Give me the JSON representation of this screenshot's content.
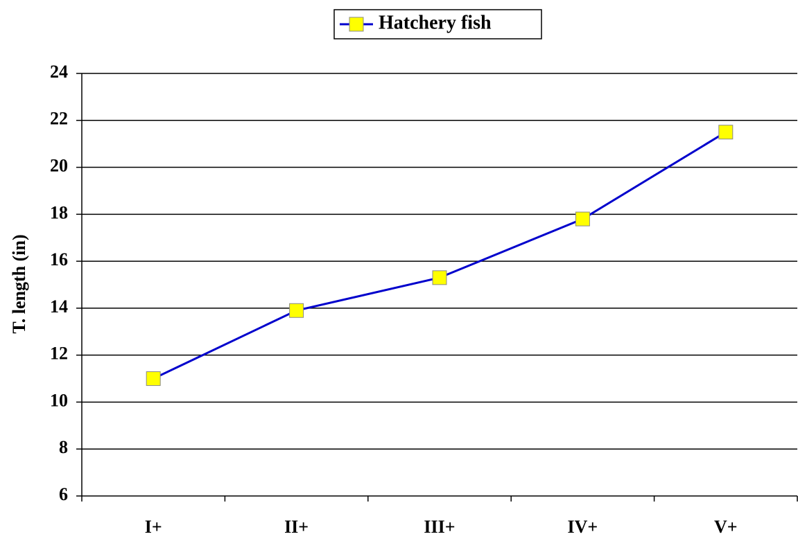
{
  "chart_data": {
    "type": "line",
    "y_label": "T. length (in)",
    "categories": [
      "I+",
      "II+",
      "III+",
      "IV+",
      "V+"
    ],
    "series": [
      {
        "name": "Hatchery fish",
        "color": "#0000cc",
        "marker_color": "#ffff00",
        "values": [
          11,
          13.9,
          15.3,
          17.8,
          21.5
        ]
      }
    ],
    "ylim": [
      6,
      24
    ],
    "yticks": [
      6,
      8,
      10,
      12,
      14,
      16,
      18,
      20,
      22,
      24
    ],
    "grid": true,
    "legend": "top"
  }
}
